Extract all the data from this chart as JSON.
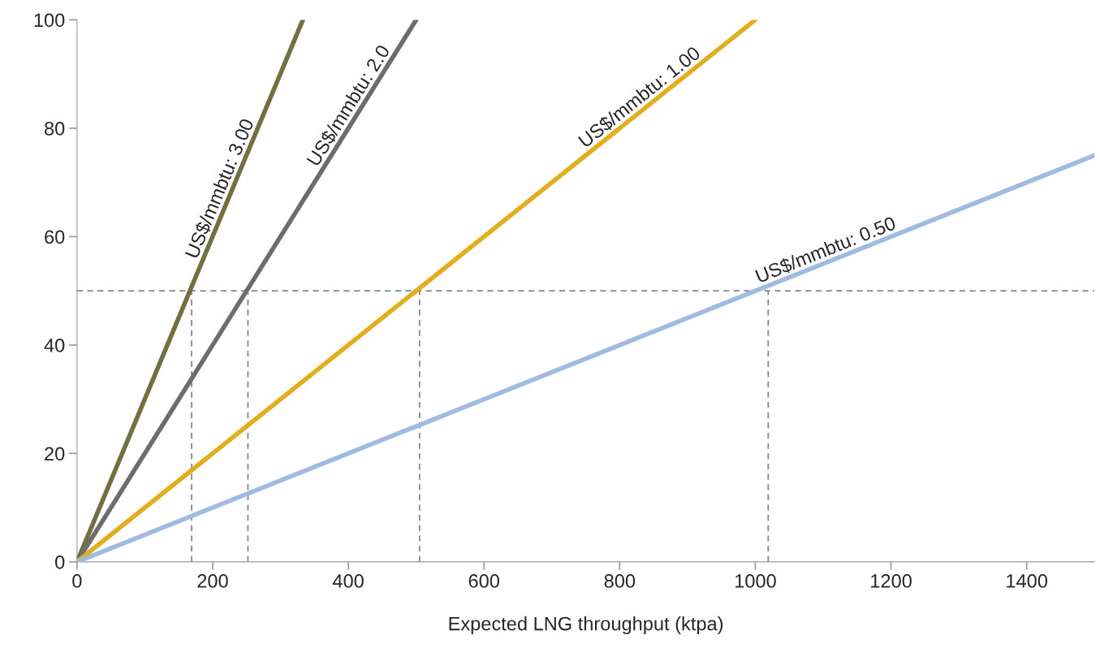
{
  "chart_data": {
    "type": "line",
    "xlabel": "Expected LNG throughput (ktpa)",
    "xlim": [
      0,
      1500
    ],
    "xticks": [
      0,
      200,
      400,
      600,
      800,
      1000,
      1200,
      1400
    ],
    "ylim": [
      0,
      100
    ],
    "yticks": [
      0,
      20,
      40,
      60,
      80,
      100
    ],
    "grid": false,
    "series": [
      {
        "name": "US$/mmbtu: 3.00",
        "color": "#707040",
        "x": [
          0,
          333
        ],
        "values": [
          0,
          100
        ],
        "line_style": "solid"
      },
      {
        "name": "US$/mmbtu: 2.0",
        "color": "#6d6d6d",
        "x": [
          0,
          500
        ],
        "values": [
          0,
          100
        ],
        "line_style": "solid"
      },
      {
        "name": "US$/mmbtu: 1.00",
        "color": "#e3ae1e",
        "x": [
          0,
          1000
        ],
        "values": [
          0,
          100
        ],
        "line_style": "solid"
      },
      {
        "name": "US$/mmbtu: 0.50",
        "color": "#9dbde0",
        "x": [
          0,
          1500
        ],
        "values": [
          0,
          75
        ],
        "line_style": "solid"
      },
      {
        "color": "#888888",
        "x": [
          169,
          169
        ],
        "values": [
          0,
          50
        ],
        "line_style": "dashed"
      },
      {
        "color": "#888888",
        "x": [
          252,
          252
        ],
        "values": [
          0,
          50
        ],
        "line_style": "dashed"
      },
      {
        "color": "#888888",
        "x": [
          505,
          505
        ],
        "values": [
          0,
          50
        ],
        "line_style": "dashed"
      },
      {
        "color": "#888888",
        "x": [
          1019,
          1019
        ],
        "values": [
          0,
          50
        ],
        "line_style": "dashed"
      }
    ],
    "ref_lines": [
      {
        "axis": "y",
        "value": 50,
        "color": "#888888",
        "line_style": "dashed"
      }
    ]
  }
}
